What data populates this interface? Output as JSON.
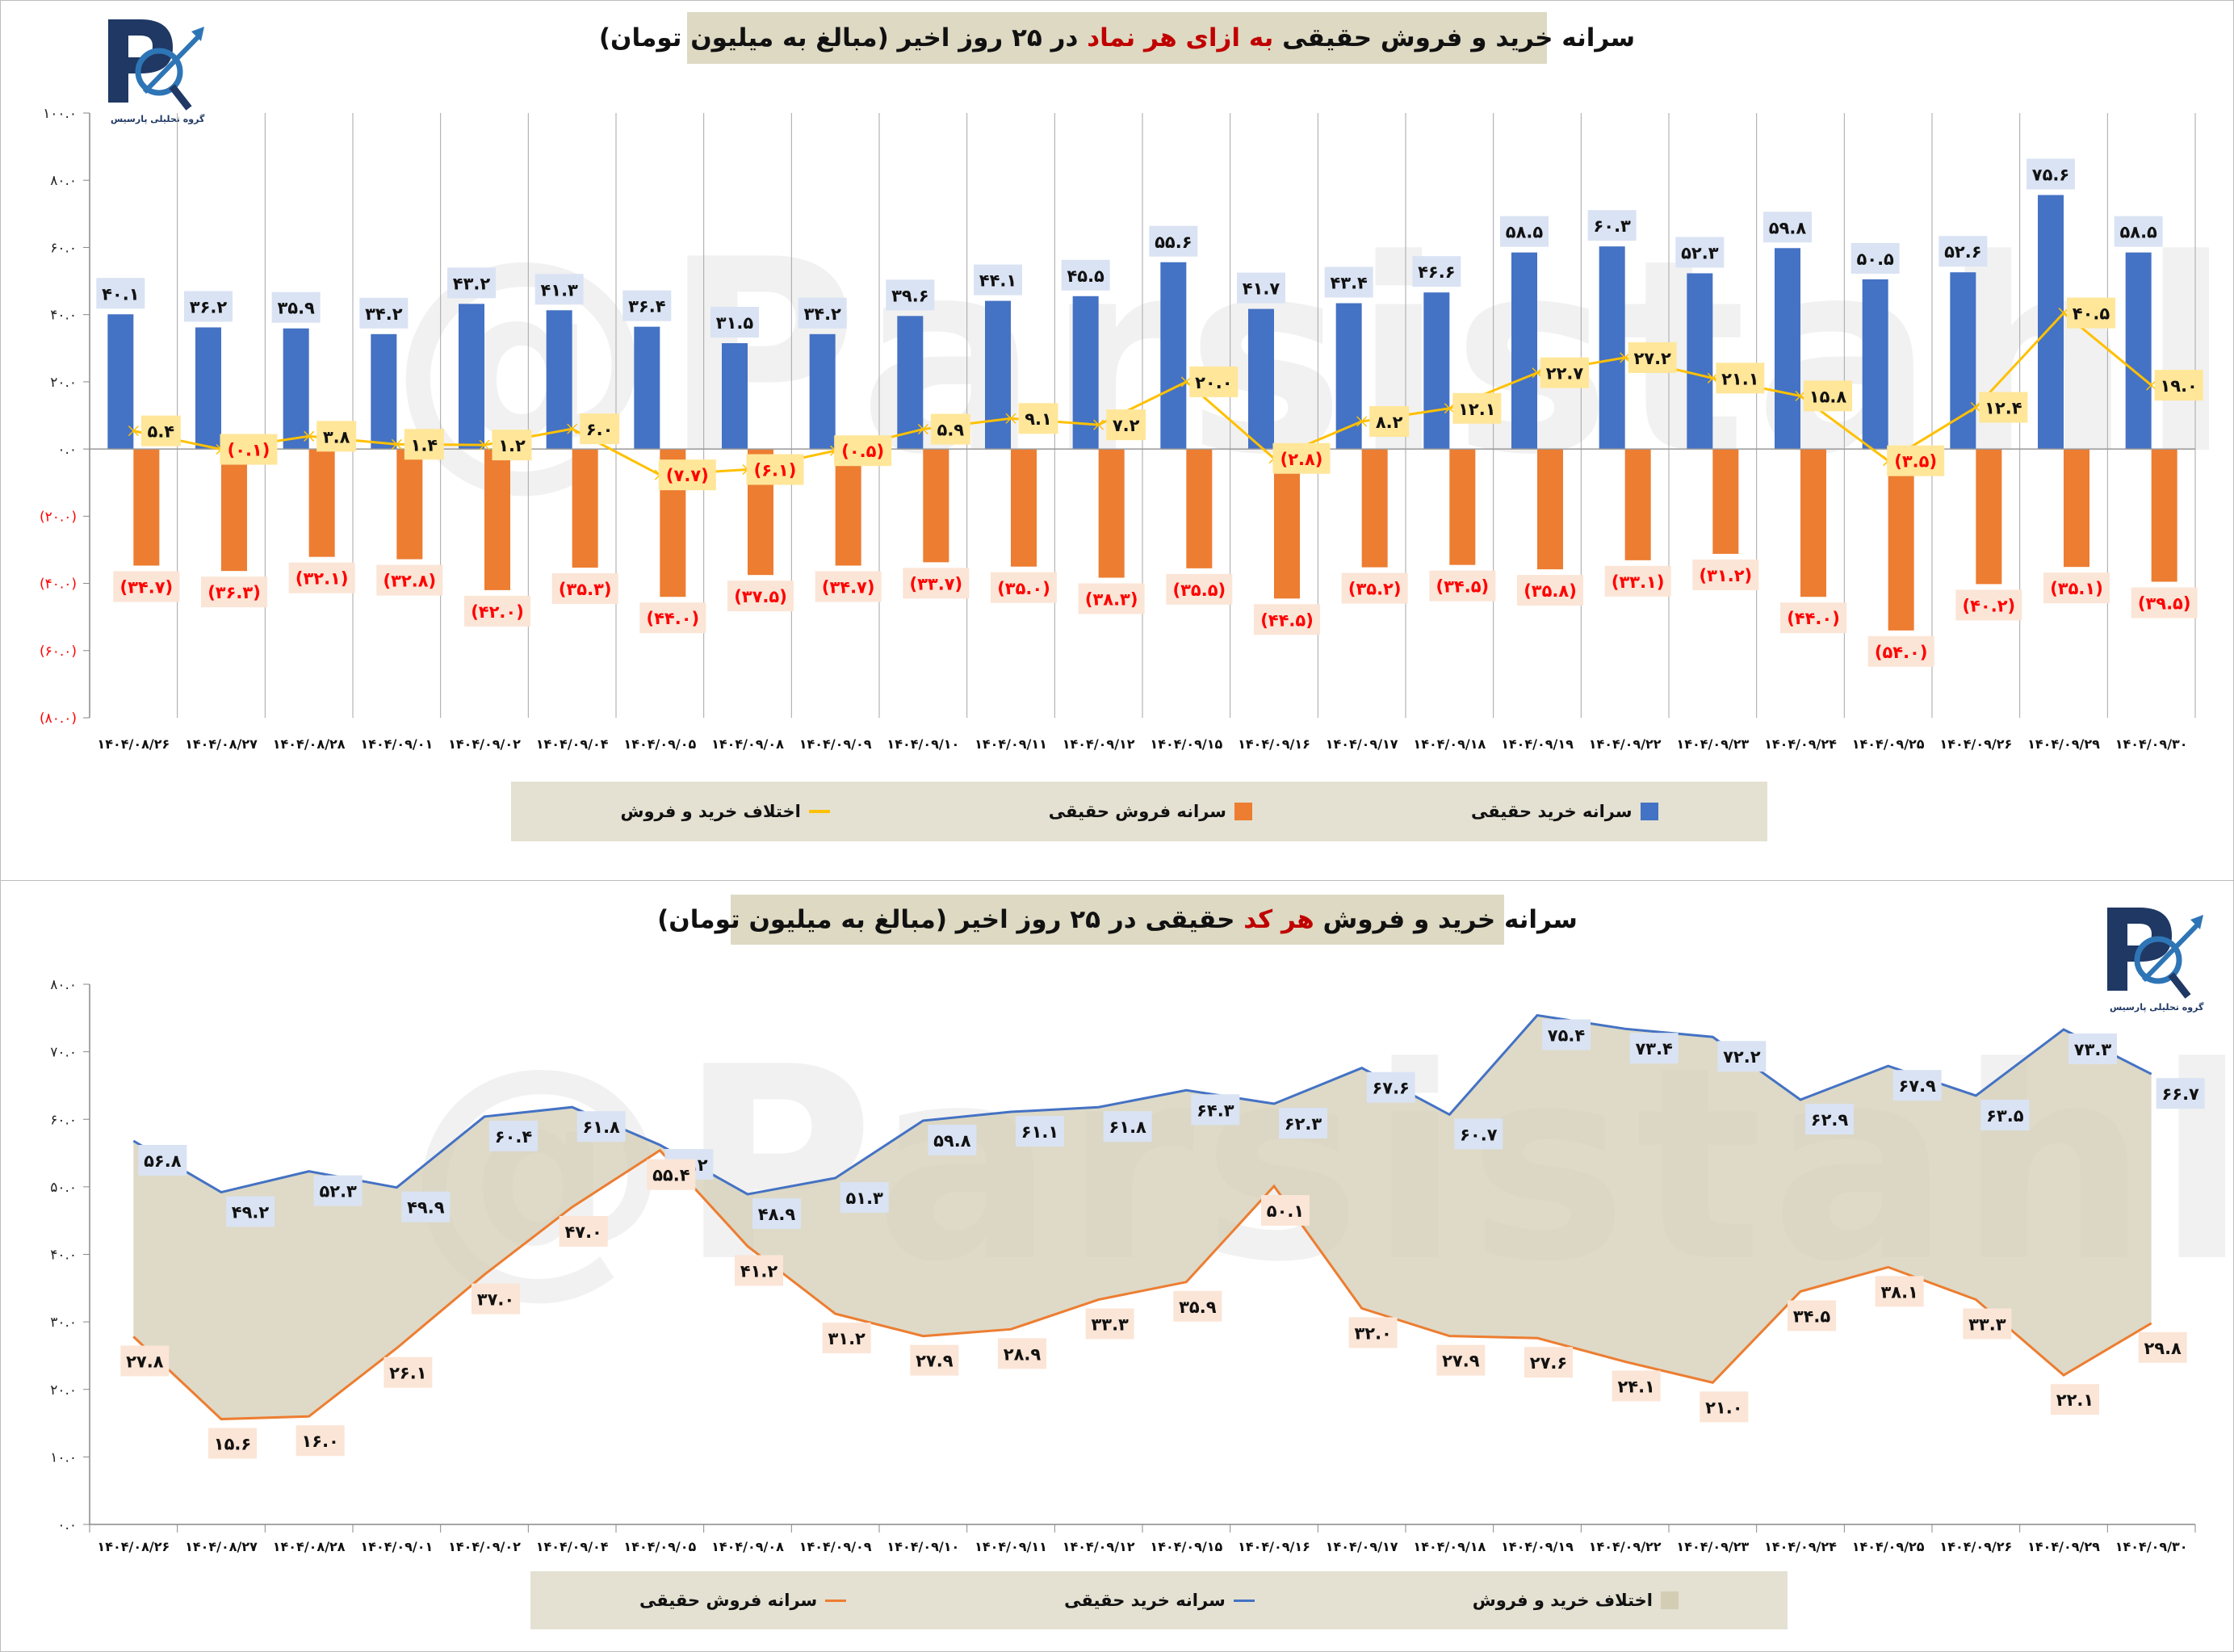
{
  "dates": [
    "۱۴۰۴/۰۸/۲۶",
    "۱۴۰۴/۰۸/۲۷",
    "۱۴۰۴/۰۸/۲۸",
    "۱۴۰۴/۰۹/۰۱",
    "۱۴۰۴/۰۹/۰۲",
    "۱۴۰۴/۰۹/۰۴",
    "۱۴۰۴/۰۹/۰۵",
    "۱۴۰۴/۰۹/۰۸",
    "۱۴۰۴/۰۹/۰۹",
    "۱۴۰۴/۰۹/۱۰",
    "۱۴۰۴/۰۹/۱۱",
    "۱۴۰۴/۰۹/۱۲",
    "۱۴۰۴/۰۹/۱۵",
    "۱۴۰۴/۰۹/۱۶",
    "۱۴۰۴/۰۹/۱۷",
    "۱۴۰۴/۰۹/۱۸",
    "۱۴۰۴/۰۹/۱۹",
    "۱۴۰۴/۰۹/۲۲",
    "۱۴۰۴/۰۹/۲۳",
    "۱۴۰۴/۰۹/۲۴",
    "۱۴۰۴/۰۹/۲۵",
    "۱۴۰۴/۰۹/۲۶",
    "۱۴۰۴/۰۹/۲۹",
    "۱۴۰۴/۰۹/۳۰"
  ],
  "watermark": "@Parsistahlil",
  "logo_caption": "گروه تحلیلی پارسیس",
  "colors": {
    "buy": "#4472c4",
    "sell": "#ed7d31",
    "diff": "#ffc000",
    "area": "#d3cdb4",
    "buy_label_bg": "#dae3f3",
    "sell_label_bg": "#fbe5d6",
    "diff_label_bg": "#ffe699",
    "negative_text": "#ff0000",
    "title_highlight": "#c00000"
  },
  "chart_data": [
    {
      "type": "bar",
      "title": {
        "part1": "سرانه خرید و فروش حقیقی ",
        "highlight": "به ازای هر نماد",
        "part2": " در ۲۵ روز اخیر (مبالغ به میلیون تومان)"
      },
      "xlabel": "",
      "ylabel": "",
      "ylim": [
        -80,
        100
      ],
      "yticks": [
        100,
        80,
        60,
        40,
        20,
        0,
        -20,
        -40,
        -60,
        -80
      ],
      "legend_position": "bottom",
      "series": [
        {
          "name": "سرانه خرید حقیقی",
          "kind": "bar",
          "values": [
            40.1,
            36.2,
            35.9,
            34.2,
            43.2,
            41.3,
            36.4,
            31.5,
            34.2,
            39.6,
            44.1,
            45.5,
            55.6,
            41.7,
            43.4,
            46.6,
            58.5,
            60.3,
            52.3,
            59.8,
            50.5,
            52.6,
            75.6,
            58.5
          ]
        },
        {
          "name": "سرانه فروش حقیقی",
          "kind": "bar",
          "values": [
            -34.7,
            -36.3,
            -32.1,
            -32.8,
            -42.0,
            -35.3,
            -44.0,
            -37.5,
            -34.7,
            -33.7,
            -35.0,
            -38.3,
            -35.5,
            -44.5,
            -35.2,
            -34.5,
            -35.8,
            -33.1,
            -31.2,
            -44.0,
            -54.0,
            -40.2,
            -35.1,
            -39.5
          ]
        },
        {
          "name": "اختلاف خرید و فروش",
          "kind": "line",
          "values": [
            5.4,
            -0.1,
            3.8,
            1.4,
            1.2,
            6.0,
            -7.7,
            -6.1,
            -0.5,
            5.9,
            9.1,
            7.2,
            20.0,
            -2.8,
            8.2,
            12.1,
            22.7,
            27.2,
            21.1,
            15.8,
            -3.5,
            12.4,
            40.5,
            19.0
          ]
        }
      ]
    },
    {
      "type": "area",
      "title": {
        "part1": "سرانه خرید و فروش ",
        "highlight": "هر کد",
        "part2": " حقیقی در ۲۵ روز اخیر (مبالغ به میلیون تومان)"
      },
      "xlabel": "",
      "ylabel": "",
      "ylim": [
        0,
        80
      ],
      "yticks": [
        80,
        70,
        60,
        50,
        40,
        30,
        20,
        10,
        0
      ],
      "legend_position": "bottom",
      "series": [
        {
          "name": "اختلاف خرید و فروش",
          "kind": "area"
        },
        {
          "name": "سرانه خرید حقیقی",
          "kind": "line",
          "values": [
            56.8,
            49.2,
            52.3,
            49.9,
            60.4,
            61.8,
            56.2,
            48.9,
            51.3,
            59.8,
            61.1,
            61.8,
            64.3,
            62.3,
            67.6,
            60.7,
            75.4,
            73.4,
            72.2,
            62.9,
            67.9,
            63.5,
            73.3,
            66.7
          ]
        },
        {
          "name": "سرانه فروش حقیقی",
          "kind": "line",
          "values": [
            27.8,
            15.6,
            16.0,
            26.1,
            37.0,
            47.0,
            55.4,
            41.2,
            31.2,
            27.9,
            28.9,
            33.3,
            35.9,
            50.1,
            32.0,
            27.9,
            27.6,
            24.1,
            21.0,
            34.5,
            38.1,
            33.3,
            22.1,
            29.8
          ]
        }
      ]
    }
  ]
}
